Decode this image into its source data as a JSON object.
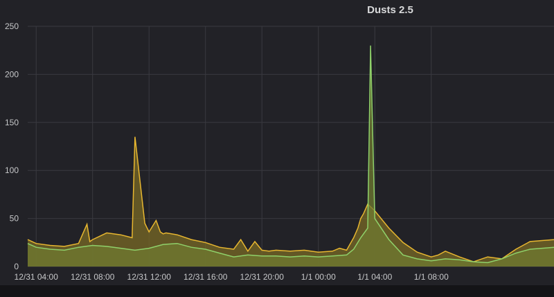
{
  "panel": {
    "title": "Dusts 2.5"
  },
  "colors": {
    "background": "#222227",
    "grid": "#3a3a40",
    "series_yellow": "#e8b730",
    "series_green": "#8fd16a",
    "fill_yellow": "#7a6a25",
    "fill_green": "#6f7a30"
  },
  "chart_data": {
    "type": "area",
    "title": "Dusts 2.5",
    "xlabel": "",
    "ylabel": "",
    "ylim": [
      0,
      250
    ],
    "y_ticks": [
      0,
      50,
      100,
      150,
      200,
      250
    ],
    "x_ticks": [
      "12/31 04:00",
      "12/31 08:00",
      "12/31 12:00",
      "12/31 16:00",
      "12/31 20:00",
      "1/1 00:00",
      "1/1 04:00",
      "1/1 08:00"
    ],
    "x_range_hours": [
      -20.6,
      16.7
    ],
    "grid": true,
    "legend": "none",
    "series": [
      {
        "color": "yellow",
        "x_hours": [
          -20.6,
          -20.0,
          -19.0,
          -18.0,
          -17.0,
          -16.4,
          -16.2,
          -16.0,
          -15.0,
          -14.0,
          -13.2,
          -13.0,
          -12.3,
          -12.0,
          -11.5,
          -11.2,
          -11.0,
          -10.8,
          -10.0,
          -9.0,
          -8.0,
          -7.0,
          -6.0,
          -5.5,
          -5.0,
          -4.5,
          -4.0,
          -3.5,
          -3.0,
          -2.0,
          -1.0,
          0.0,
          1.0,
          1.5,
          2.0,
          2.5,
          2.8,
          3.0,
          3.2,
          3.5,
          4.0,
          5.0,
          6.0,
          7.0,
          8.0,
          8.5,
          9.0,
          10.0,
          11.0,
          12.0,
          13.0,
          14.0,
          15.0,
          16.7
        ],
        "values": [
          28,
          24,
          22,
          21,
          24,
          44,
          26,
          28,
          35,
          33,
          30,
          135,
          45,
          36,
          48,
          36,
          34,
          35,
          33,
          28,
          25,
          20,
          18,
          28,
          16,
          26,
          17,
          16,
          17,
          16,
          17,
          15,
          16,
          19,
          17,
          30,
          40,
          50,
          55,
          65,
          58,
          40,
          25,
          15,
          10,
          12,
          16,
          10,
          5,
          10,
          8,
          18,
          26,
          28
        ]
      },
      {
        "color": "green",
        "x_hours": [
          -20.6,
          -20.0,
          -19.0,
          -18.0,
          -17.0,
          -16.0,
          -15.0,
          -14.0,
          -13.0,
          -12.0,
          -11.0,
          -10.0,
          -9.0,
          -8.0,
          -7.0,
          -6.0,
          -5.0,
          -4.0,
          -3.0,
          -2.0,
          -1.0,
          0.0,
          1.0,
          2.0,
          2.5,
          3.0,
          3.5,
          3.7,
          4.0,
          5.0,
          6.0,
          7.0,
          8.0,
          9.0,
          10.0,
          11.0,
          12.0,
          13.0,
          14.0,
          15.0,
          16.7
        ],
        "values": [
          24,
          20,
          18,
          17,
          20,
          22,
          21,
          19,
          17,
          19,
          23,
          24,
          20,
          18,
          14,
          10,
          12,
          11,
          11,
          10,
          11,
          10,
          11,
          12,
          18,
          30,
          40,
          230,
          50,
          28,
          12,
          8,
          6,
          8,
          7,
          5,
          4,
          8,
          14,
          18,
          20
        ]
      }
    ]
  }
}
